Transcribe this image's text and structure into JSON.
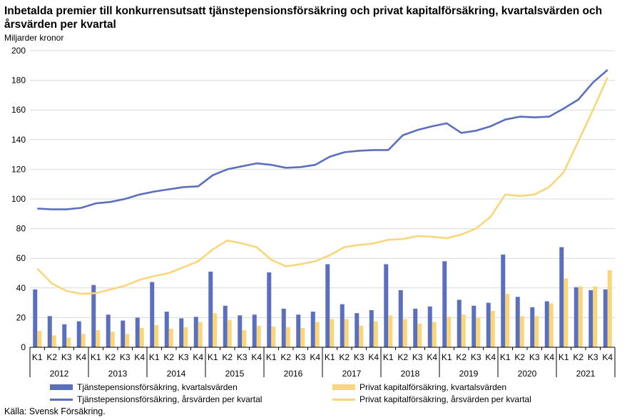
{
  "title": "Inbetalda premier till konkurrensutsatt tjänstepensionsförsäkring och privat kapitalförsäkring, kvartalsvärden och årsvärden per kvartal",
  "unit_label": "Miljarder kronor",
  "source": "Källa: Svensk Försäkring.",
  "colors": {
    "tjanste_bar": "#5b6fbf",
    "privat_bar": "#f9d67a",
    "tjanste_line": "#5b6fbf",
    "privat_line": "#f9d67a"
  },
  "chart_data": {
    "type": "bar",
    "ylim": [
      0,
      200
    ],
    "yticks": [
      "0",
      "20",
      "40",
      "60",
      "80",
      "100",
      "120",
      "140",
      "160",
      "180",
      "200"
    ],
    "quarters": [
      "K1",
      "K2",
      "K3",
      "K4"
    ],
    "years": [
      "2012",
      "2013",
      "2014",
      "2015",
      "2016",
      "2017",
      "2018",
      "2019",
      "2020",
      "2021"
    ],
    "series": [
      {
        "name": "Tjänstepensionsförsäkring, kvartalsvärden",
        "kind": "bar",
        "values": [
          39,
          21,
          15.5,
          17.5,
          42,
          22,
          18,
          20,
          44,
          24,
          19.5,
          20.5,
          51,
          28,
          21.5,
          22,
          50.5,
          26,
          22,
          24,
          56,
          29,
          23,
          25,
          56,
          38.5,
          26,
          27.5,
          58,
          32,
          28,
          30,
          62.5,
          34,
          27,
          31,
          67.5,
          40.5,
          38.5,
          39
        ]
      },
      {
        "name": "Privat kapitalförsäkring, kvartalsvärden",
        "kind": "bar",
        "values": [
          11,
          8,
          6.5,
          9,
          11.5,
          10.5,
          9,
          13,
          15,
          12.5,
          13.5,
          17,
          23,
          18.5,
          11.5,
          14.5,
          14,
          13.5,
          13,
          17,
          19,
          19,
          14.5,
          17.5,
          21.5,
          19,
          16,
          17,
          20.5,
          22,
          20,
          24.5,
          36,
          21,
          21,
          29.5,
          46.5,
          41,
          41,
          52
        ]
      },
      {
        "name": "Tjänstepensionsförsäkring, årsvärden per kvartal",
        "kind": "line",
        "values": [
          93.5,
          93,
          93,
          94,
          97,
          98,
          100,
          103,
          105,
          106.5,
          108,
          108.5,
          116,
          120,
          122,
          124,
          123,
          121,
          121.5,
          123,
          128.5,
          131.5,
          132.5,
          133,
          133,
          143,
          146.5,
          149,
          151,
          144.5,
          146,
          149,
          153.5,
          155.5,
          155,
          155.5,
          161,
          167,
          178.5,
          187
        ]
      },
      {
        "name": "Privat kapitalförsäkring, årsvärden per kvartal",
        "kind": "line",
        "values": [
          53,
          43,
          38,
          36,
          36.5,
          39,
          41.5,
          45.5,
          48,
          50,
          54,
          58,
          66,
          72,
          70,
          67.5,
          59,
          54.5,
          56,
          58,
          62,
          67.5,
          69,
          70,
          72.5,
          73,
          75,
          74.5,
          73.5,
          76,
          80,
          88,
          103,
          102,
          103,
          108,
          118,
          139,
          160,
          182
        ]
      }
    ]
  }
}
